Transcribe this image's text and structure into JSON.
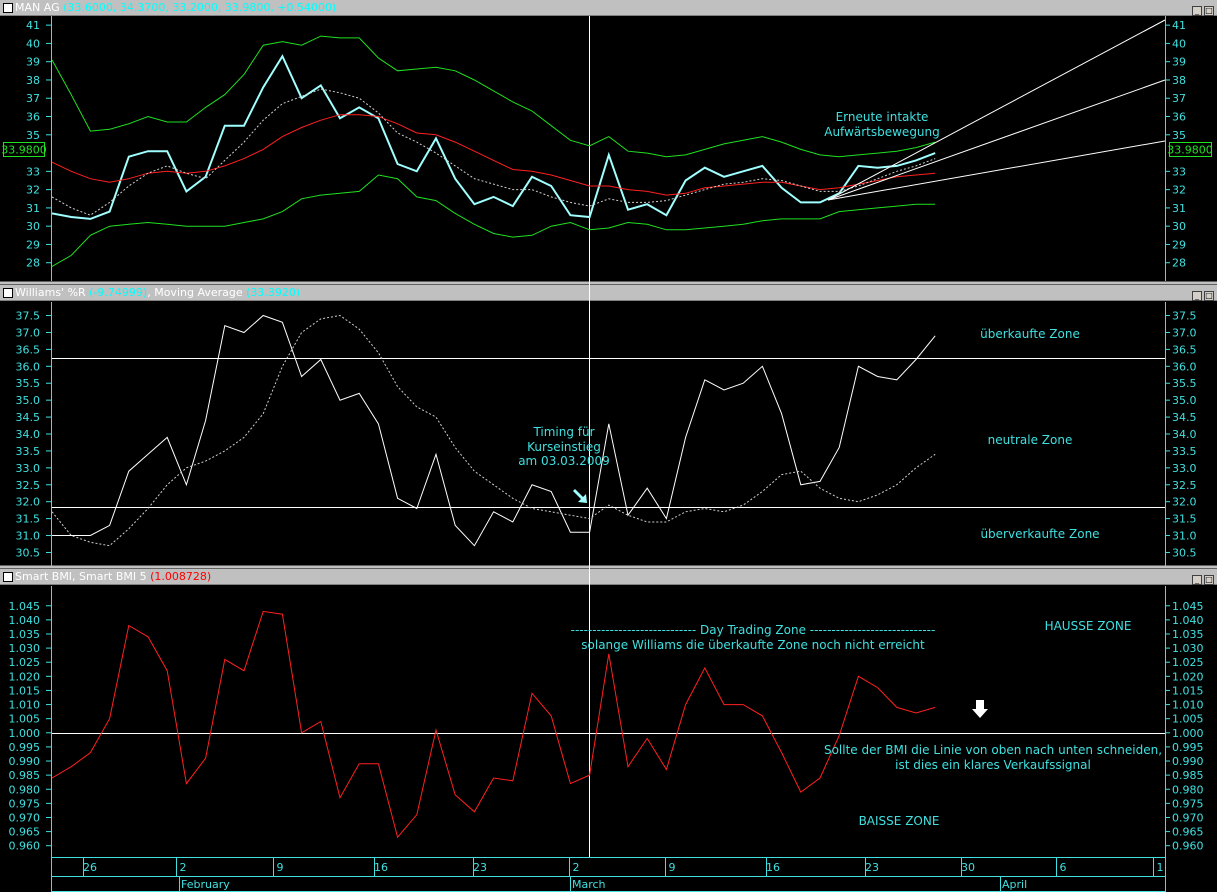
{
  "panels": [
    {
      "name": "MAN AG",
      "values": "(33.6000, 34.3700, 33.2000, 33.9800, +0.54000)"
    },
    {
      "name": "Williams' %R",
      "value1": "(-9.74999)",
      "name2": ", Moving Average",
      "value2": "(33.3920)"
    },
    {
      "name": "Smart BMI, Smart BMI 5",
      "value1": "(1.008728)"
    }
  ],
  "price_tag": "33.9800",
  "annotations": {
    "price": [
      "Erneute intakte",
      "Aufwärtsbewegung"
    ],
    "overbought": "überkaufte Zone",
    "neutral": "neutrale Zone",
    "oversold": "überverkaufte Zone",
    "timing": [
      "Timing für",
      "Kurseinstieg",
      "am 03.03.2009"
    ],
    "daytrading": "----------------------------- Day Trading Zone -----------------------------",
    "daytrading_sub": "solange Williams die überkaufte Zone noch nicht erreicht",
    "hausse": "HAUSSE ZONE",
    "baisse": "BAISSE ZONE",
    "sell_signal": [
      "Sollte der BMI die Linie von oben nach unten schneiden,",
      "ist dies ein klares Verkaufssignal"
    ]
  },
  "x_axis": {
    "day_ticks": [
      "26",
      "2",
      "9",
      "16",
      "23",
      "2",
      "9",
      "16",
      "23",
      "30",
      "6",
      "1"
    ],
    "months": [
      "February",
      "March",
      "April"
    ]
  },
  "chart_data": [
    {
      "type": "line",
      "title": "MAN AG",
      "y_ticks": [
        28,
        29,
        30,
        31,
        32,
        33,
        35,
        36,
        37,
        38,
        39,
        40,
        41
      ],
      "ylim": [
        27.0,
        41.5
      ],
      "series": [
        {
          "name": "MAN AG",
          "color": "#a0ffff",
          "values": [
            30.7,
            30.5,
            30.4,
            30.8,
            33.8,
            34.1,
            34.1,
            31.9,
            32.7,
            35.5,
            35.5,
            37.6,
            39.3,
            37.0,
            37.7,
            35.9,
            36.5,
            35.9,
            33.4,
            33.0,
            34.8,
            32.6,
            31.2,
            31.6,
            31.1,
            32.7,
            32.2,
            30.6,
            30.5,
            33.9,
            30.9,
            31.2,
            30.6,
            32.5,
            33.2,
            32.7,
            33.0,
            33.3,
            32.1,
            31.3,
            31.3,
            31.8,
            33.3,
            33.2,
            33.3,
            33.6,
            34.0
          ]
        },
        {
          "color": "#ff2020",
          "values": [
            33.5,
            33.0,
            32.6,
            32.4,
            32.6,
            32.9,
            33.0,
            32.9,
            33.0,
            33.3,
            33.7,
            34.2,
            34.9,
            35.4,
            35.8,
            36.1,
            36.1,
            36.0,
            35.6,
            35.1,
            35.0,
            34.6,
            34.1,
            33.6,
            33.1,
            33.0,
            32.8,
            32.5,
            32.2,
            32.2,
            32.0,
            31.9,
            31.7,
            31.8,
            32.1,
            32.2,
            32.3,
            32.4,
            32.4,
            32.2,
            32.0,
            32.1,
            32.3,
            32.5,
            32.7,
            32.8,
            32.9
          ]
        },
        {
          "color": "#20e020",
          "values": [
            39.1,
            37.2,
            35.2,
            35.3,
            35.6,
            36.0,
            35.7,
            35.7,
            36.5,
            37.2,
            38.3,
            39.9,
            40.1,
            39.9,
            40.4,
            40.3,
            40.3,
            39.2,
            38.5,
            38.6,
            38.7,
            38.5,
            38.0,
            37.4,
            36.8,
            36.3,
            35.5,
            34.7,
            34.4,
            34.9,
            34.1,
            34.0,
            33.8,
            33.9,
            34.2,
            34.5,
            34.7,
            34.9,
            34.6,
            34.2,
            33.9,
            33.8,
            33.9,
            34.0,
            34.1,
            34.3,
            34.6
          ]
        },
        {
          "color": "#20e020",
          "values": [
            27.8,
            28.4,
            29.5,
            30.0,
            30.1,
            30.2,
            30.1,
            30.0,
            30.0,
            30.0,
            30.2,
            30.4,
            30.8,
            31.5,
            31.7,
            31.8,
            31.9,
            32.8,
            32.6,
            31.6,
            31.4,
            30.7,
            30.1,
            29.6,
            29.4,
            29.5,
            30.0,
            30.2,
            29.8,
            29.9,
            30.2,
            30.1,
            29.8,
            29.8,
            29.9,
            30.0,
            30.1,
            30.3,
            30.4,
            30.4,
            30.4,
            30.8,
            30.9,
            31.0,
            31.1,
            31.2,
            31.2
          ]
        },
        {
          "color": "#d0d0d0",
          "dashed": true,
          "values": [
            31.6,
            31.0,
            30.6,
            31.3,
            32.2,
            32.9,
            33.3,
            32.9,
            32.6,
            33.6,
            34.6,
            35.8,
            36.7,
            37.1,
            37.5,
            37.3,
            37.0,
            36.2,
            35.1,
            34.6,
            34.0,
            33.3,
            32.6,
            32.3,
            32.0,
            32.0,
            31.6,
            31.3,
            31.1,
            31.5,
            31.3,
            31.3,
            31.4,
            31.7,
            32.0,
            32.3,
            32.4,
            32.6,
            32.5,
            32.2,
            31.9,
            31.9,
            32.2,
            32.6,
            33.0,
            33.3,
            33.7
          ]
        }
      ]
    },
    {
      "type": "line",
      "title": "Williams' %R, Moving Average",
      "y_ticks": [
        30.5,
        31.0,
        31.5,
        32.0,
        32.5,
        33.0,
        33.5,
        34.0,
        34.5,
        35.0,
        35.5,
        36.0,
        36.5,
        37.0,
        37.5
      ],
      "ylim": [
        30.1,
        37.9
      ],
      "levels": [
        36.25,
        31.85
      ],
      "series": [
        {
          "name": "Williams' %R",
          "color": "#ffffff",
          "values": [
            31.0,
            31.0,
            31.0,
            31.3,
            32.9,
            33.4,
            33.9,
            32.5,
            34.4,
            37.2,
            37.0,
            37.5,
            37.3,
            35.7,
            36.2,
            35.0,
            35.2,
            34.3,
            32.1,
            31.8,
            33.4,
            31.3,
            30.7,
            31.7,
            31.4,
            32.5,
            32.3,
            31.1,
            31.1,
            34.3,
            31.6,
            32.4,
            31.5,
            33.9,
            35.6,
            35.3,
            35.5,
            36.0,
            34.6,
            32.5,
            32.6,
            33.6,
            36.0,
            35.7,
            35.6,
            36.2,
            36.9
          ]
        },
        {
          "name": "Moving Average",
          "color": "#d0d0d0",
          "dashed": true,
          "values": [
            31.7,
            31.0,
            30.8,
            30.7,
            31.2,
            31.8,
            32.5,
            33.0,
            33.2,
            33.5,
            33.9,
            34.6,
            36.0,
            37.0,
            37.4,
            37.5,
            37.1,
            36.4,
            35.4,
            34.8,
            34.5,
            33.6,
            32.9,
            32.5,
            32.1,
            31.8,
            31.7,
            31.6,
            31.5,
            31.9,
            31.6,
            31.4,
            31.4,
            31.7,
            31.8,
            31.7,
            31.9,
            32.3,
            32.8,
            32.9,
            32.4,
            32.1,
            32.0,
            32.2,
            32.5,
            33.0,
            33.4
          ]
        }
      ]
    },
    {
      "type": "line",
      "title": "Smart BMI, Smart BMI 5",
      "y_ticks": [
        0.96,
        0.965,
        0.97,
        0.975,
        0.98,
        0.985,
        0.99,
        0.995,
        1.0,
        1.005,
        1.01,
        1.015,
        1.02,
        1.025,
        1.03,
        1.035,
        1.04,
        1.045
      ],
      "ylim": [
        0.956,
        1.052
      ],
      "levels": [
        1.0
      ],
      "series": [
        {
          "name": "Smart BMI",
          "color": "#ff2020",
          "values": [
            0.984,
            0.988,
            0.993,
            1.005,
            1.038,
            1.034,
            1.022,
            0.982,
            0.991,
            1.026,
            1.022,
            1.043,
            1.042,
            1.0,
            1.004,
            0.977,
            0.989,
            0.989,
            0.963,
            0.971,
            1.001,
            0.978,
            0.972,
            0.984,
            0.983,
            1.014,
            1.006,
            0.982,
            0.985,
            1.028,
            0.988,
            0.998,
            0.987,
            1.01,
            1.023,
            1.01,
            1.01,
            1.006,
            0.993,
            0.979,
            0.984,
            0.999,
            1.02,
            1.016,
            1.009,
            1.007,
            1.009
          ]
        }
      ]
    }
  ]
}
